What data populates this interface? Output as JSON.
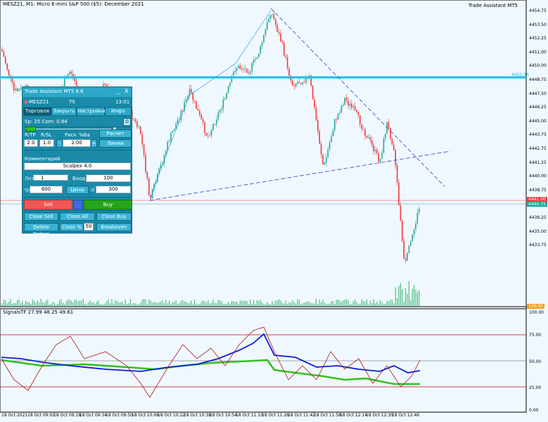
{
  "chart": {
    "title": "MESZ21, M1:  Micro E-mini S&P 500 ($5): December 2021",
    "ea_label": "Trade Assistant MT5",
    "indicator_title": "SignalsTF 27.99 48.25 49.61",
    "price_axis": [
      "4454.75",
      "4453.50",
      "4452.25",
      "4451.00",
      "4450.00",
      "4448.75",
      "4447.50",
      "4446.25",
      "4445.00",
      "4443.75",
      "4442.75",
      "4441.25",
      "4440.00",
      "4438.75",
      "4437.50",
      "4436.25",
      "4435.00",
      "4433.75"
    ],
    "hline_label": "4450.00",
    "bid_label": "4440.75",
    "ask_label": "4441.00",
    "volume_label": "100.00",
    "indicator_axis": [
      "100.00",
      "75.00",
      "50.00",
      "25.00",
      "0.00"
    ],
    "time_axis": [
      "18 Oct 2021",
      "18 Oct 09:02",
      "18 Oct 09:18",
      "18 Oct 09:34",
      "18 Oct 09:50",
      "18 Oct 10:06",
      "18 Oct 10:22",
      "18 Oct 10:38",
      "18 Oct 10:54",
      "18 Oct 11:10",
      "18 Oct 11:26",
      "18 Oct 11:42",
      "18 Oct 11:58",
      "18 Oct 12:14",
      "18 Oct 12:30",
      "18 Oct 12:46"
    ],
    "colors": {
      "bull": "#26a69a",
      "bear": "#ef3a3a",
      "hline": "#19c0e6",
      "trend": "#2b3fd0",
      "blue_osc": "#0a1fd6",
      "green_osc": "#33c21c",
      "red_osc": "#a81818"
    }
  },
  "panel": {
    "title": "Trade Assistant MT5 8.6",
    "minimize": "_",
    "close": "X",
    "symbol": "MESZ21",
    "mode": "TS",
    "time": "13:01",
    "tabs": [
      "Торговля",
      "Закрыть",
      "Настройки",
      "Инфо"
    ],
    "spread_commission": "Sp: 25  Com: 0.84",
    "rtp_label": "R/TP",
    "rsl_label": "R/SL",
    "risk_label": "Риск",
    "pct_label": "%Ba",
    "lot_calc_button": "Расчет лота",
    "lines_button": "Линии",
    "rtp_value": "2.0",
    "rsl_value": "1.0",
    "minus": "-",
    "risk_value": "2.00",
    "plus": "+",
    "comment_label": "Комментарий",
    "comment_value": "Scalpex 4.0",
    "lot_label": "Лот",
    "lot_value": "1",
    "entry_label": "Вход:",
    "entry_value": "100",
    "tp_label": "tp",
    "tp_value": "600",
    "prices_button": "Цены",
    "sl_label": "sl",
    "sl_value": "300",
    "sell": "Sell",
    "buy": "Buy",
    "close_sell": "Close Sell",
    "close_all": "Close All",
    "close_buy": "Close Buy",
    "delete_orders": "Delete Orders",
    "close_percent": "Close %",
    "close_percent_value": "50",
    "breakeven": "Breakeven"
  }
}
